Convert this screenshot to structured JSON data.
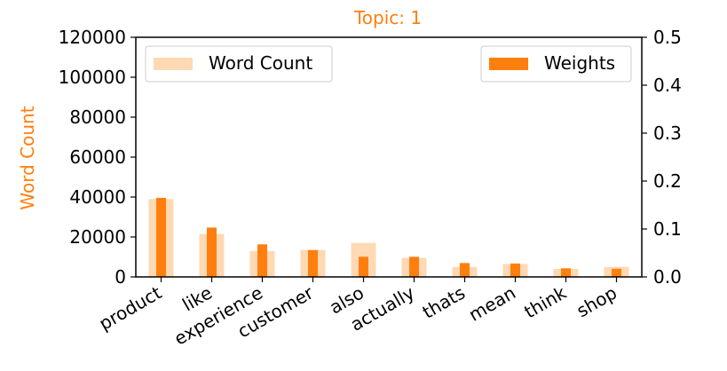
{
  "chart_data": {
    "type": "bar",
    "title": "Topic: 1",
    "xlabel": "",
    "ylabel": "Word Count",
    "y2label": "",
    "ylim": [
      0,
      120000
    ],
    "y2lim": [
      0,
      0.5
    ],
    "yticks": [
      "0",
      "20000",
      "40000",
      "60000",
      "80000",
      "100000",
      "120000"
    ],
    "y2ticks": [
      "0.0",
      "0.1",
      "0.2",
      "0.3",
      "0.4",
      "0.5"
    ],
    "categories": [
      "product",
      "like",
      "experience",
      "customer",
      "also",
      "actually",
      "thats",
      "mean",
      "think",
      "shop"
    ],
    "series": [
      {
        "name": "Word Count",
        "axis": "left",
        "color": "#ffd8b4",
        "values": [
          39000,
          21500,
          13000,
          13500,
          17000,
          9500,
          5000,
          6500,
          4000,
          5000
        ]
      },
      {
        "name": "Weights",
        "axis": "right",
        "color": "#ff7f0e",
        "values": [
          0.165,
          0.103,
          0.068,
          0.056,
          0.042,
          0.042,
          0.029,
          0.028,
          0.018,
          0.017
        ]
      }
    ],
    "legend": [
      "top-left",
      "top-right"
    ],
    "grid": false,
    "title_color": "#ff7f0e"
  }
}
